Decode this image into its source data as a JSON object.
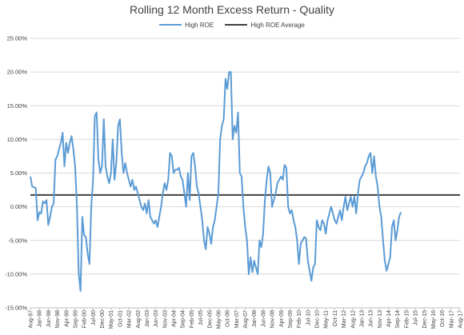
{
  "chart_data": {
    "type": "line",
    "title": "Rolling 12 Month Excess Return - Quality",
    "xlabel": "",
    "ylabel": "",
    "ylim": [
      -0.15,
      0.25
    ],
    "y_ticks": [
      "25.00%",
      "20.00%",
      "15.00%",
      "10.00%",
      "5.00%",
      "0.00%",
      "-5.00%",
      "-10.00%",
      "-15.00%"
    ],
    "x_ticks": [
      "Aug-97",
      "Jan-98",
      "Jun-98",
      "Nov-98",
      "Apr-99",
      "Sep-99",
      "Feb-00",
      "Jul-00",
      "Dec-00",
      "May-01",
      "Oct-01",
      "Mar-02",
      "Aug-02",
      "Jan-03",
      "Jun-03",
      "Nov-03",
      "Apr-04",
      "Sep-04",
      "Feb-05",
      "Jul-05",
      "Dec-05",
      "May-06",
      "Oct-06",
      "Mar-07",
      "Aug-07",
      "Jan-08",
      "Jun-08",
      "Nov-08",
      "Apr-09",
      "Sep-09",
      "Feb-10",
      "Jul-10",
      "Dec-10",
      "May-11",
      "Oct-11",
      "Mar-12",
      "Aug-12",
      "Jan-13",
      "Jun-13",
      "Nov-13",
      "Apr-14",
      "Sep-14",
      "Feb-15",
      "Jul-15",
      "Dec-15",
      "May-16",
      "Oct-16",
      "Mar-17",
      "Aug-17"
    ],
    "legend_position": "top",
    "grid": true,
    "series": [
      {
        "name": "High ROE",
        "color": "#5b9bd5",
        "points": [
          [
            0,
            0.045
          ],
          [
            1,
            0.03
          ],
          [
            3,
            0.028
          ],
          [
            4,
            -0.02
          ],
          [
            5,
            -0.008
          ],
          [
            6,
            -0.01
          ],
          [
            7,
            0.008
          ],
          [
            8,
            0.005
          ],
          [
            9,
            0.01
          ],
          [
            10,
            -0.027
          ],
          [
            11,
            -0.015
          ],
          [
            12,
            0.0
          ],
          [
            13,
            0.005
          ],
          [
            14,
            0.07
          ],
          [
            15,
            0.075
          ],
          [
            16,
            0.085
          ],
          [
            17,
            0.095
          ],
          [
            18,
            0.11
          ],
          [
            19,
            0.06
          ],
          [
            20,
            0.095
          ],
          [
            21,
            0.08
          ],
          [
            22,
            0.095
          ],
          [
            23,
            0.105
          ],
          [
            24,
            0.085
          ],
          [
            25,
            0.06
          ],
          [
            26,
            0.0
          ],
          [
            27,
            -0.1
          ],
          [
            28,
            -0.125
          ],
          [
            29,
            -0.015
          ],
          [
            30,
            -0.042
          ],
          [
            31,
            -0.045
          ],
          [
            32,
            -0.07
          ],
          [
            33,
            -0.085
          ],
          [
            34,
            0.0
          ],
          [
            35,
            0.04
          ],
          [
            36,
            0.135
          ],
          [
            37,
            0.14
          ],
          [
            38,
            0.07
          ],
          [
            39,
            0.05
          ],
          [
            40,
            0.06
          ],
          [
            41,
            0.13
          ],
          [
            42,
            0.06
          ],
          [
            43,
            0.045
          ],
          [
            44,
            0.035
          ],
          [
            45,
            0.05
          ],
          [
            46,
            0.1
          ],
          [
            47,
            0.04
          ],
          [
            48,
            0.065
          ],
          [
            49,
            0.12
          ],
          [
            50,
            0.13
          ],
          [
            51,
            0.08
          ],
          [
            52,
            0.05
          ],
          [
            53,
            0.065
          ],
          [
            54,
            0.05
          ],
          [
            55,
            0.04
          ],
          [
            56,
            0.03
          ],
          [
            57,
            0.04
          ],
          [
            58,
            0.025
          ],
          [
            59,
            0.03
          ],
          [
            60,
            0.02
          ],
          [
            61,
            0.01
          ],
          [
            62,
            0.0
          ],
          [
            63,
            -0.005
          ],
          [
            64,
            0.005
          ],
          [
            65,
            -0.01
          ],
          [
            66,
            0.01
          ],
          [
            67,
            -0.015
          ],
          [
            68,
            -0.02
          ],
          [
            69,
            -0.025
          ],
          [
            70,
            -0.02
          ],
          [
            71,
            -0.03
          ],
          [
            72,
            -0.015
          ],
          [
            73,
            0.0
          ],
          [
            74,
            0.02
          ],
          [
            75,
            0.035
          ],
          [
            76,
            0.025
          ],
          [
            77,
            0.04
          ],
          [
            78,
            0.08
          ],
          [
            79,
            0.075
          ],
          [
            80,
            0.05
          ],
          [
            81,
            0.055
          ],
          [
            82,
            0.055
          ],
          [
            83,
            0.058
          ],
          [
            84,
            0.045
          ],
          [
            85,
            0.04
          ],
          [
            86,
            0.02
          ],
          [
            87,
            0.0
          ],
          [
            88,
            0.05
          ],
          [
            89,
            0.01
          ],
          [
            90,
            0.075
          ],
          [
            91,
            0.08
          ],
          [
            92,
            0.06
          ],
          [
            93,
            0.03
          ],
          [
            94,
            0.02
          ],
          [
            95,
            0.0
          ],
          [
            96,
            -0.02
          ],
          [
            97,
            -0.05
          ],
          [
            98,
            -0.063
          ],
          [
            99,
            -0.03
          ],
          [
            100,
            -0.04
          ],
          [
            101,
            -0.055
          ],
          [
            102,
            -0.03
          ],
          [
            103,
            -0.02
          ],
          [
            104,
            0.0
          ],
          [
            105,
            0.02
          ],
          [
            106,
            0.1
          ],
          [
            107,
            0.12
          ],
          [
            108,
            0.13
          ],
          [
            109,
            0.19
          ],
          [
            110,
            0.175
          ],
          [
            111,
            0.2
          ],
          [
            112,
            0.2
          ],
          [
            113,
            0.1
          ],
          [
            114,
            0.12
          ],
          [
            115,
            0.11
          ],
          [
            116,
            0.14
          ],
          [
            117,
            0.05
          ],
          [
            118,
            0.045
          ],
          [
            119,
            0.0
          ],
          [
            120,
            -0.03
          ],
          [
            121,
            -0.05
          ],
          [
            122,
            -0.1
          ],
          [
            123,
            -0.075
          ],
          [
            124,
            -0.097
          ],
          [
            125,
            -0.08
          ],
          [
            126,
            -0.09
          ],
          [
            127,
            -0.1
          ],
          [
            128,
            -0.05
          ],
          [
            129,
            -0.06
          ],
          [
            130,
            -0.04
          ],
          [
            131,
            0.01
          ],
          [
            132,
            0.04
          ],
          [
            133,
            0.06
          ],
          [
            134,
            0.05
          ],
          [
            135,
            0.0
          ],
          [
            136,
            0.01
          ],
          [
            137,
            0.02
          ],
          [
            138,
            0.035
          ],
          [
            139,
            0.04
          ],
          [
            140,
            0.045
          ],
          [
            141,
            0.04
          ],
          [
            142,
            0.062
          ],
          [
            143,
            0.058
          ],
          [
            144,
            0.0
          ],
          [
            145,
            -0.01
          ],
          [
            146,
            -0.005
          ],
          [
            147,
            -0.02
          ],
          [
            148,
            -0.03
          ],
          [
            149,
            -0.05
          ],
          [
            150,
            -0.085
          ],
          [
            151,
            -0.055
          ],
          [
            152,
            -0.05
          ],
          [
            153,
            -0.045
          ],
          [
            154,
            -0.047
          ],
          [
            155,
            -0.08
          ],
          [
            156,
            -0.095
          ],
          [
            157,
            -0.11
          ],
          [
            158,
            -0.09
          ],
          [
            159,
            -0.085
          ],
          [
            160,
            -0.02
          ],
          [
            161,
            -0.03
          ],
          [
            162,
            -0.035
          ],
          [
            163,
            -0.02
          ],
          [
            164,
            -0.025
          ],
          [
            165,
            -0.04
          ],
          [
            166,
            -0.02
          ],
          [
            167,
            -0.01
          ],
          [
            168,
            0.0
          ],
          [
            169,
            -0.01
          ],
          [
            170,
            -0.02
          ],
          [
            171,
            -0.025
          ],
          [
            172,
            -0.015
          ],
          [
            173,
            -0.005
          ],
          [
            174,
            -0.02
          ],
          [
            175,
            0.0
          ],
          [
            176,
            0.015
          ],
          [
            177,
            -0.005
          ],
          [
            178,
            0.005
          ],
          [
            179,
            0.015
          ],
          [
            180,
            0.0
          ],
          [
            181,
            0.015
          ],
          [
            182,
            -0.01
          ],
          [
            183,
            0.02
          ],
          [
            184,
            0.04
          ],
          [
            185,
            0.045
          ],
          [
            186,
            0.05
          ],
          [
            187,
            0.06
          ],
          [
            188,
            0.065
          ],
          [
            189,
            0.075
          ],
          [
            190,
            0.08
          ],
          [
            191,
            0.05
          ],
          [
            192,
            0.075
          ],
          [
            193,
            0.045
          ],
          [
            194,
            0.03
          ],
          [
            195,
            0.0
          ],
          [
            196,
            -0.015
          ],
          [
            197,
            -0.05
          ],
          [
            198,
            -0.08
          ],
          [
            199,
            -0.095
          ],
          [
            200,
            -0.085
          ],
          [
            201,
            -0.075
          ],
          [
            202,
            -0.03
          ],
          [
            203,
            -0.02
          ],
          [
            204,
            -0.05
          ],
          [
            205,
            -0.035
          ],
          [
            206,
            -0.015
          ],
          [
            207,
            -0.008
          ]
        ]
      },
      {
        "name": "High ROE Average",
        "color": "#404040",
        "constant": 0.0175
      }
    ]
  }
}
